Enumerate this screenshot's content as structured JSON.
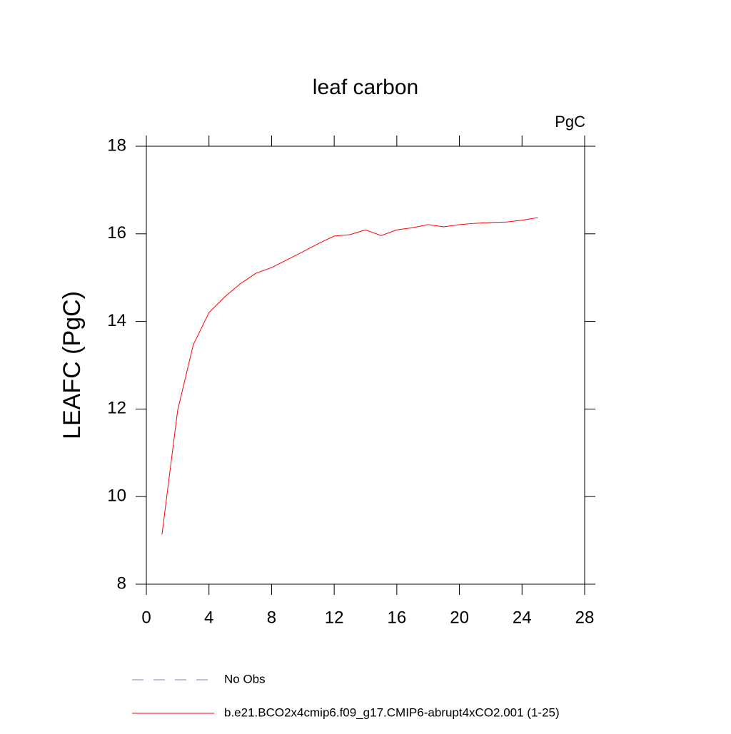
{
  "chart_data": {
    "type": "line",
    "title": "leaf carbon",
    "units_label": "PgC",
    "y_label": "LEAFC  (PgC)",
    "x": [
      1,
      2,
      3,
      4,
      5,
      6,
      7,
      8,
      9,
      10,
      11,
      12,
      13,
      14,
      15,
      16,
      17,
      18,
      19,
      20,
      21,
      22,
      23,
      24,
      25
    ],
    "series": [
      {
        "name": "b.e21.BCO2x4cmip6.f09_g17.CMIP6-abrupt4xCO2.001 (1-25)",
        "color": "#ff0000",
        "values": [
          9.14,
          11.97,
          13.47,
          14.2,
          14.56,
          14.86,
          15.1,
          15.23,
          15.41,
          15.59,
          15.78,
          15.95,
          15.98,
          16.09,
          15.96,
          16.09,
          16.14,
          16.21,
          16.16,
          16.21,
          16.24,
          16.26,
          16.27,
          16.31,
          16.37
        ]
      }
    ],
    "legend_extra": [
      {
        "name": "No Obs",
        "color": "#8080c0",
        "dashed": true
      }
    ],
    "xlim": [
      0,
      28
    ],
    "xticks": [
      0,
      4,
      8,
      12,
      16,
      20,
      24,
      28
    ],
    "ylim": [
      8,
      18
    ],
    "yticks": [
      8,
      10,
      12,
      14,
      16,
      18
    ]
  }
}
